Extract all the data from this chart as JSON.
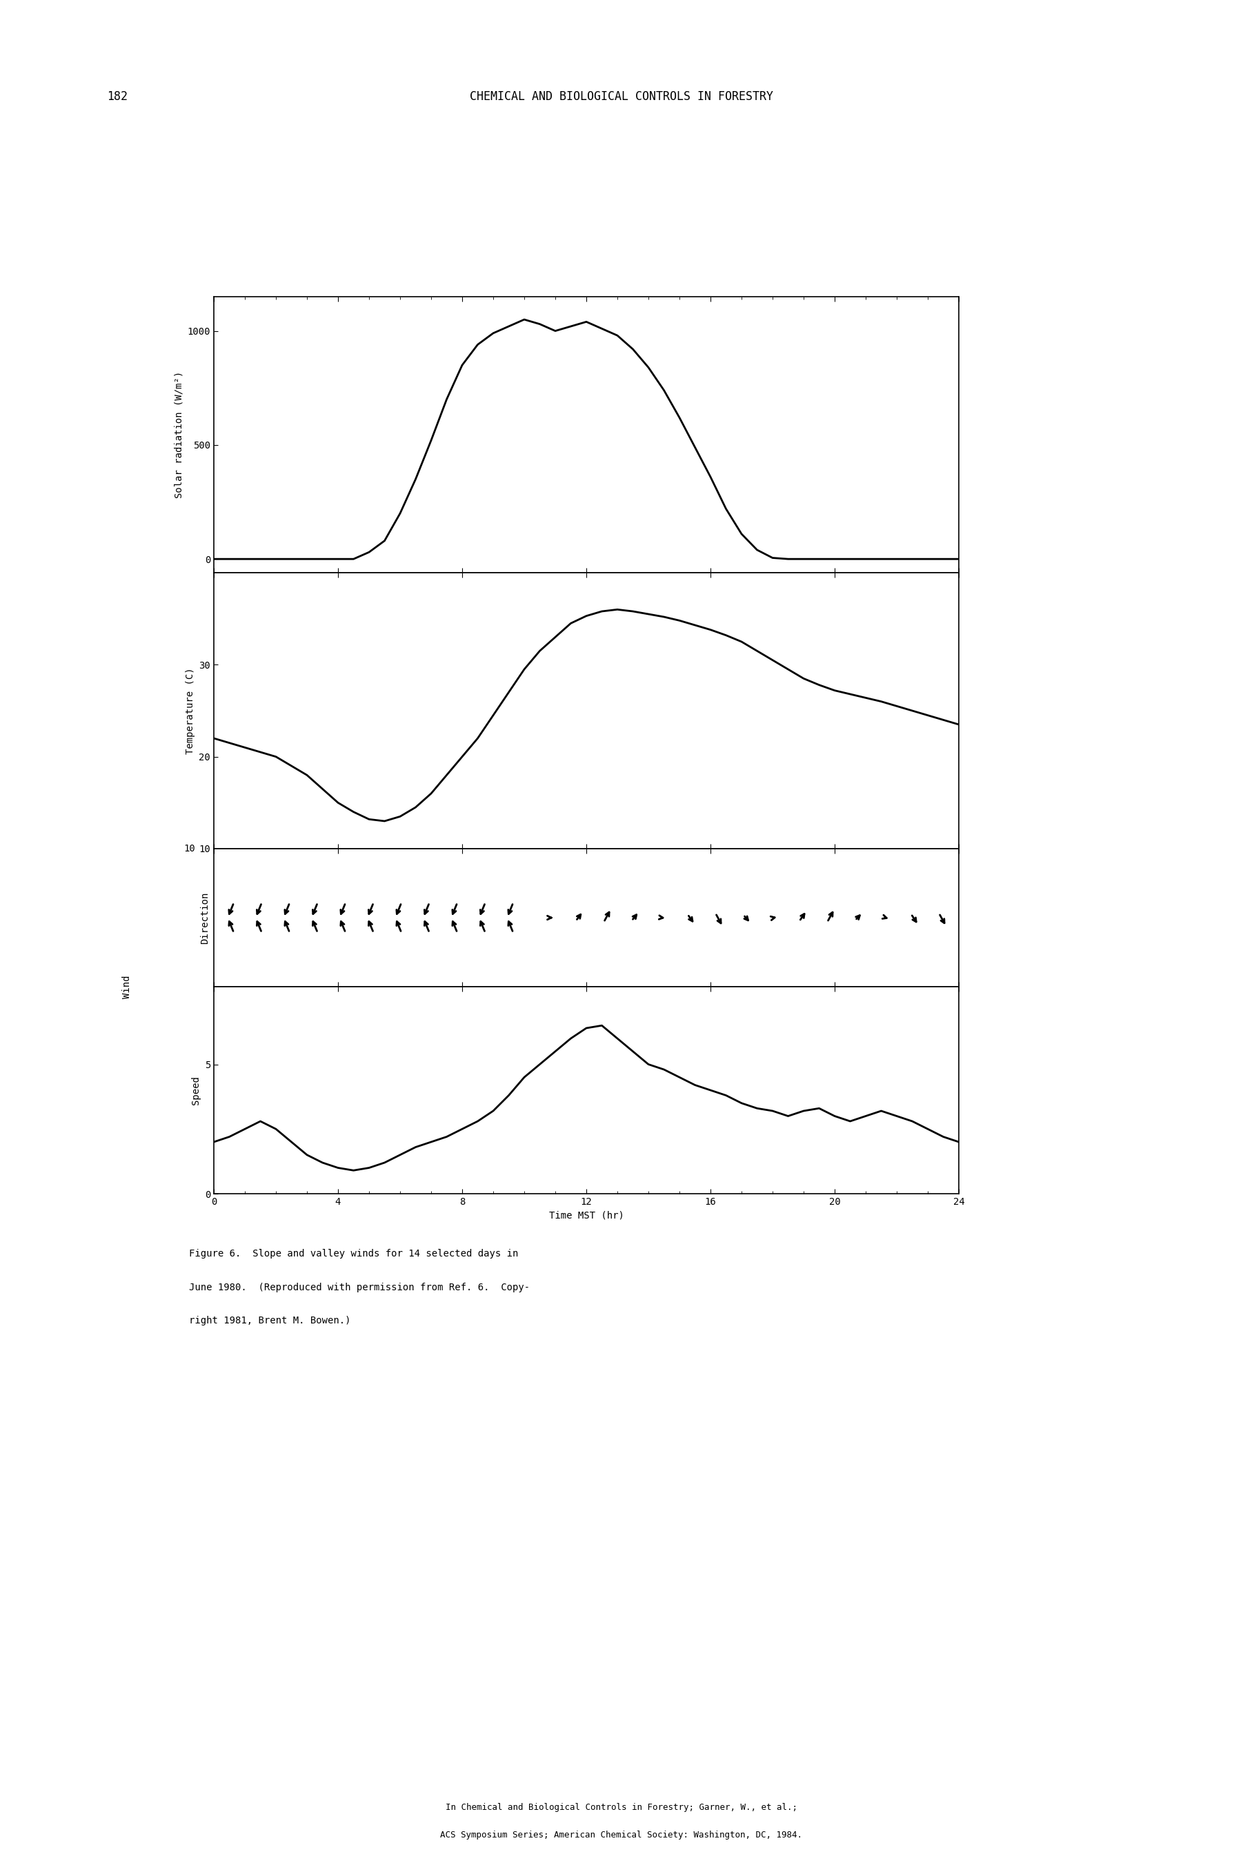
{
  "page_number": "182",
  "header": "CHEMICAL AND BIOLOGICAL CONTROLS IN FORESTRY",
  "caption_line1": "Figure 6.  Slope and valley winds for 14 selected days in",
  "caption_line2": "June 1980.  (Reproduced with permission from Ref. 6.  Copy-",
  "caption_line3": "right 1981, Brent M. Bowen.)",
  "footer_line1": "In Chemical and Biological Controls in Forestry; Garner, W., et al.;",
  "footer_line2": "ACS Symposium Series; American Chemical Society: Washington, DC, 1984.",
  "xlabel": "Time MST (hr)",
  "ylabel_solar": "Solar radiation (W/m²)",
  "ylabel_temp": "Temperature (C)",
  "ylabel_wind_dir": "Direction",
  "ylabel_wind_spd": "Speed",
  "ylabel_wind": "Wind",
  "solar_x": [
    0,
    0.5,
    1,
    1.5,
    2,
    2.5,
    3,
    3.5,
    4,
    4.5,
    5,
    5.5,
    6,
    6.5,
    7,
    7.5,
    8,
    8.5,
    9,
    9.5,
    10,
    10.5,
    11,
    11.5,
    12,
    12.5,
    13,
    13.5,
    14,
    14.5,
    15,
    15.5,
    16,
    16.5,
    17,
    17.5,
    18,
    18.5,
    19,
    19.5,
    20,
    20.5,
    21,
    21.5,
    22,
    22.5,
    23,
    23.5,
    24
  ],
  "solar_y": [
    0,
    0,
    0,
    0,
    0,
    0,
    0,
    0,
    0,
    0,
    30,
    80,
    200,
    350,
    520,
    700,
    850,
    940,
    990,
    1020,
    1050,
    1030,
    1000,
    1020,
    1040,
    1010,
    980,
    920,
    840,
    740,
    620,
    490,
    360,
    220,
    110,
    40,
    5,
    0,
    0,
    0,
    0,
    0,
    0,
    0,
    0,
    0,
    0,
    0,
    0
  ],
  "temp_x": [
    0,
    0.5,
    1,
    1.5,
    2,
    2.5,
    3,
    3.5,
    4,
    4.5,
    5,
    5.5,
    6,
    6.5,
    7,
    7.5,
    8,
    8.5,
    9,
    9.5,
    10,
    10.5,
    11,
    11.5,
    12,
    12.5,
    13,
    13.5,
    14,
    14.5,
    15,
    15.5,
    16,
    16.5,
    17,
    17.5,
    18,
    18.5,
    19,
    19.5,
    20,
    20.5,
    21,
    21.5,
    22,
    22.5,
    23,
    23.5,
    24
  ],
  "temp_y": [
    22,
    21.5,
    21,
    20.5,
    20,
    19,
    18,
    16.5,
    15,
    14,
    13.2,
    13,
    13.5,
    14.5,
    16,
    18,
    20,
    22,
    24.5,
    27,
    29.5,
    31.5,
    33,
    34.5,
    35.3,
    35.8,
    36.0,
    35.8,
    35.5,
    35.2,
    34.8,
    34.3,
    33.8,
    33.2,
    32.5,
    31.5,
    30.5,
    29.5,
    28.5,
    27.8,
    27.2,
    26.8,
    26.4,
    26.0,
    25.5,
    25.0,
    24.5,
    24.0,
    23.5
  ],
  "speed_x": [
    0,
    0.5,
    1,
    1.5,
    2,
    2.5,
    3,
    3.5,
    4,
    4.5,
    5,
    5.5,
    6,
    6.5,
    7,
    7.5,
    8,
    8.5,
    9,
    9.5,
    10,
    10.5,
    11,
    11.5,
    12,
    12.5,
    13,
    13.5,
    14,
    14.5,
    15,
    15.5,
    16,
    16.5,
    17,
    17.5,
    18,
    18.5,
    19,
    19.5,
    20,
    20.5,
    21,
    21.5,
    22,
    22.5,
    23,
    23.5,
    24
  ],
  "speed_y": [
    2.0,
    2.2,
    2.5,
    2.8,
    2.5,
    2.0,
    1.5,
    1.2,
    1.0,
    0.9,
    1.0,
    1.2,
    1.5,
    1.8,
    2.0,
    2.2,
    2.5,
    2.8,
    3.2,
    3.8,
    4.5,
    5.0,
    5.5,
    6.0,
    6.4,
    6.5,
    6.0,
    5.5,
    5.0,
    4.8,
    4.5,
    4.2,
    4.0,
    3.8,
    3.5,
    3.3,
    3.2,
    3.0,
    3.2,
    3.3,
    3.0,
    2.8,
    3.0,
    3.2,
    3.0,
    2.8,
    2.5,
    2.2,
    2.0
  ],
  "solar_ylim": [
    -60,
    1150
  ],
  "solar_yticks": [
    0,
    500,
    1000
  ],
  "temp_ylim": [
    10,
    40
  ],
  "temp_yticks": [
    10,
    20,
    30
  ],
  "speed_ylim": [
    0,
    8
  ],
  "speed_yticks": [
    0,
    5
  ],
  "xlim": [
    0,
    24
  ],
  "xticks": [
    0,
    4,
    8,
    12,
    16,
    20,
    24
  ],
  "line_color": "#000000",
  "line_width": 2.0,
  "bg_color": "#ffffff"
}
